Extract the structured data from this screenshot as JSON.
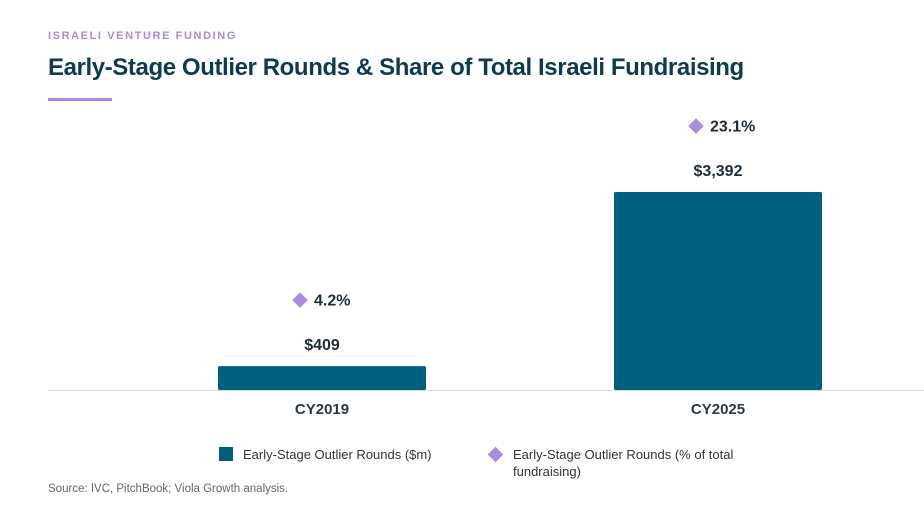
{
  "header": {
    "eyebrow": "ISRAELI VENTURE FUNDING",
    "title": "Early-Stage Outlier Rounds & Share of Total Israeli Fundraising"
  },
  "chart_data": {
    "type": "bar",
    "categories": [
      "CY2019",
      "CY2025"
    ],
    "series": [
      {
        "name": "Early-Stage Outlier Rounds ($m)",
        "kind": "bar",
        "values": [
          409,
          3392
        ],
        "labels": [
          "$409",
          "$3,392"
        ],
        "color": "#005f7f"
      },
      {
        "name": "Early-Stage Outlier Rounds (% of total fundraising)",
        "kind": "diamond",
        "values": [
          4.2,
          23.1
        ],
        "labels": [
          "4.2%",
          "23.1%"
        ],
        "color": "#a98be0"
      }
    ],
    "title": "Early-Stage Outlier Rounds & Share of Total Israeli Fundraising",
    "xlabel": "",
    "ylabel": "",
    "ylim": [
      0,
      3392
    ],
    "grid": false,
    "legend_position": "bottom"
  },
  "legend": {
    "bar_label": "Early-Stage Outlier Rounds ($m)",
    "diamond_label": "Early-Stage Outlier Rounds (% of total fundraising)"
  },
  "source": "Source: IVC, PitchBook; Viola Growth analysis.",
  "colors": {
    "bar": "#005f7f",
    "diamond": "#a98be0",
    "title": "#0e3b4f",
    "eyebrow": "#a98be0"
  }
}
